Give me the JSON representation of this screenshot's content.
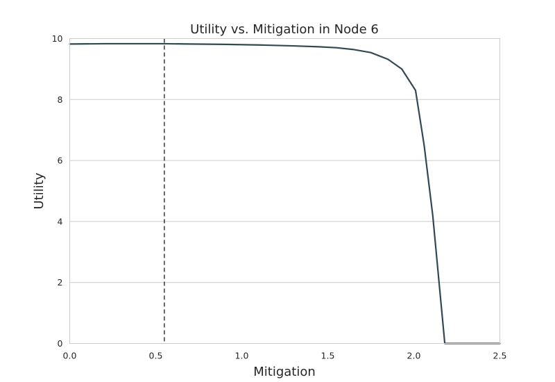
{
  "colors": {
    "line": "#2f4a55",
    "marker_line": "#1a1a1a",
    "grid": "#cccccc",
    "text": "#262626"
  },
  "chart_data": {
    "type": "line",
    "title": "Utility vs. Mitigation in Node 6",
    "xlabel": "Mitigation",
    "ylabel": "Utility",
    "xlim": [
      0.0,
      2.5
    ],
    "ylim": [
      0,
      10
    ],
    "xticks": [
      0.0,
      0.5,
      1.0,
      1.5,
      2.0,
      2.5
    ],
    "xtick_labels": [
      "0.0",
      "0.5",
      "1.0",
      "1.5",
      "2.0",
      "2.5"
    ],
    "yticks": [
      0,
      2,
      4,
      6,
      8,
      10
    ],
    "ytick_labels": [
      "0",
      "2",
      "4",
      "6",
      "8",
      "10"
    ],
    "grid": "horizontal",
    "vertical_marker": {
      "x": 0.55,
      "style": "dashed"
    },
    "series": [
      {
        "x": [
          0.0,
          0.2,
          0.4,
          0.55,
          0.7,
          0.9,
          1.1,
          1.3,
          1.45,
          1.55,
          1.65,
          1.75,
          1.85,
          1.93,
          2.01,
          2.06,
          2.11,
          2.15,
          2.18,
          2.3,
          2.5
        ],
        "y": [
          9.82,
          9.83,
          9.83,
          9.83,
          9.82,
          9.81,
          9.79,
          9.76,
          9.73,
          9.7,
          9.64,
          9.54,
          9.32,
          9.0,
          8.3,
          6.5,
          4.2,
          1.8,
          0.0,
          0.0,
          0.0
        ]
      }
    ]
  }
}
